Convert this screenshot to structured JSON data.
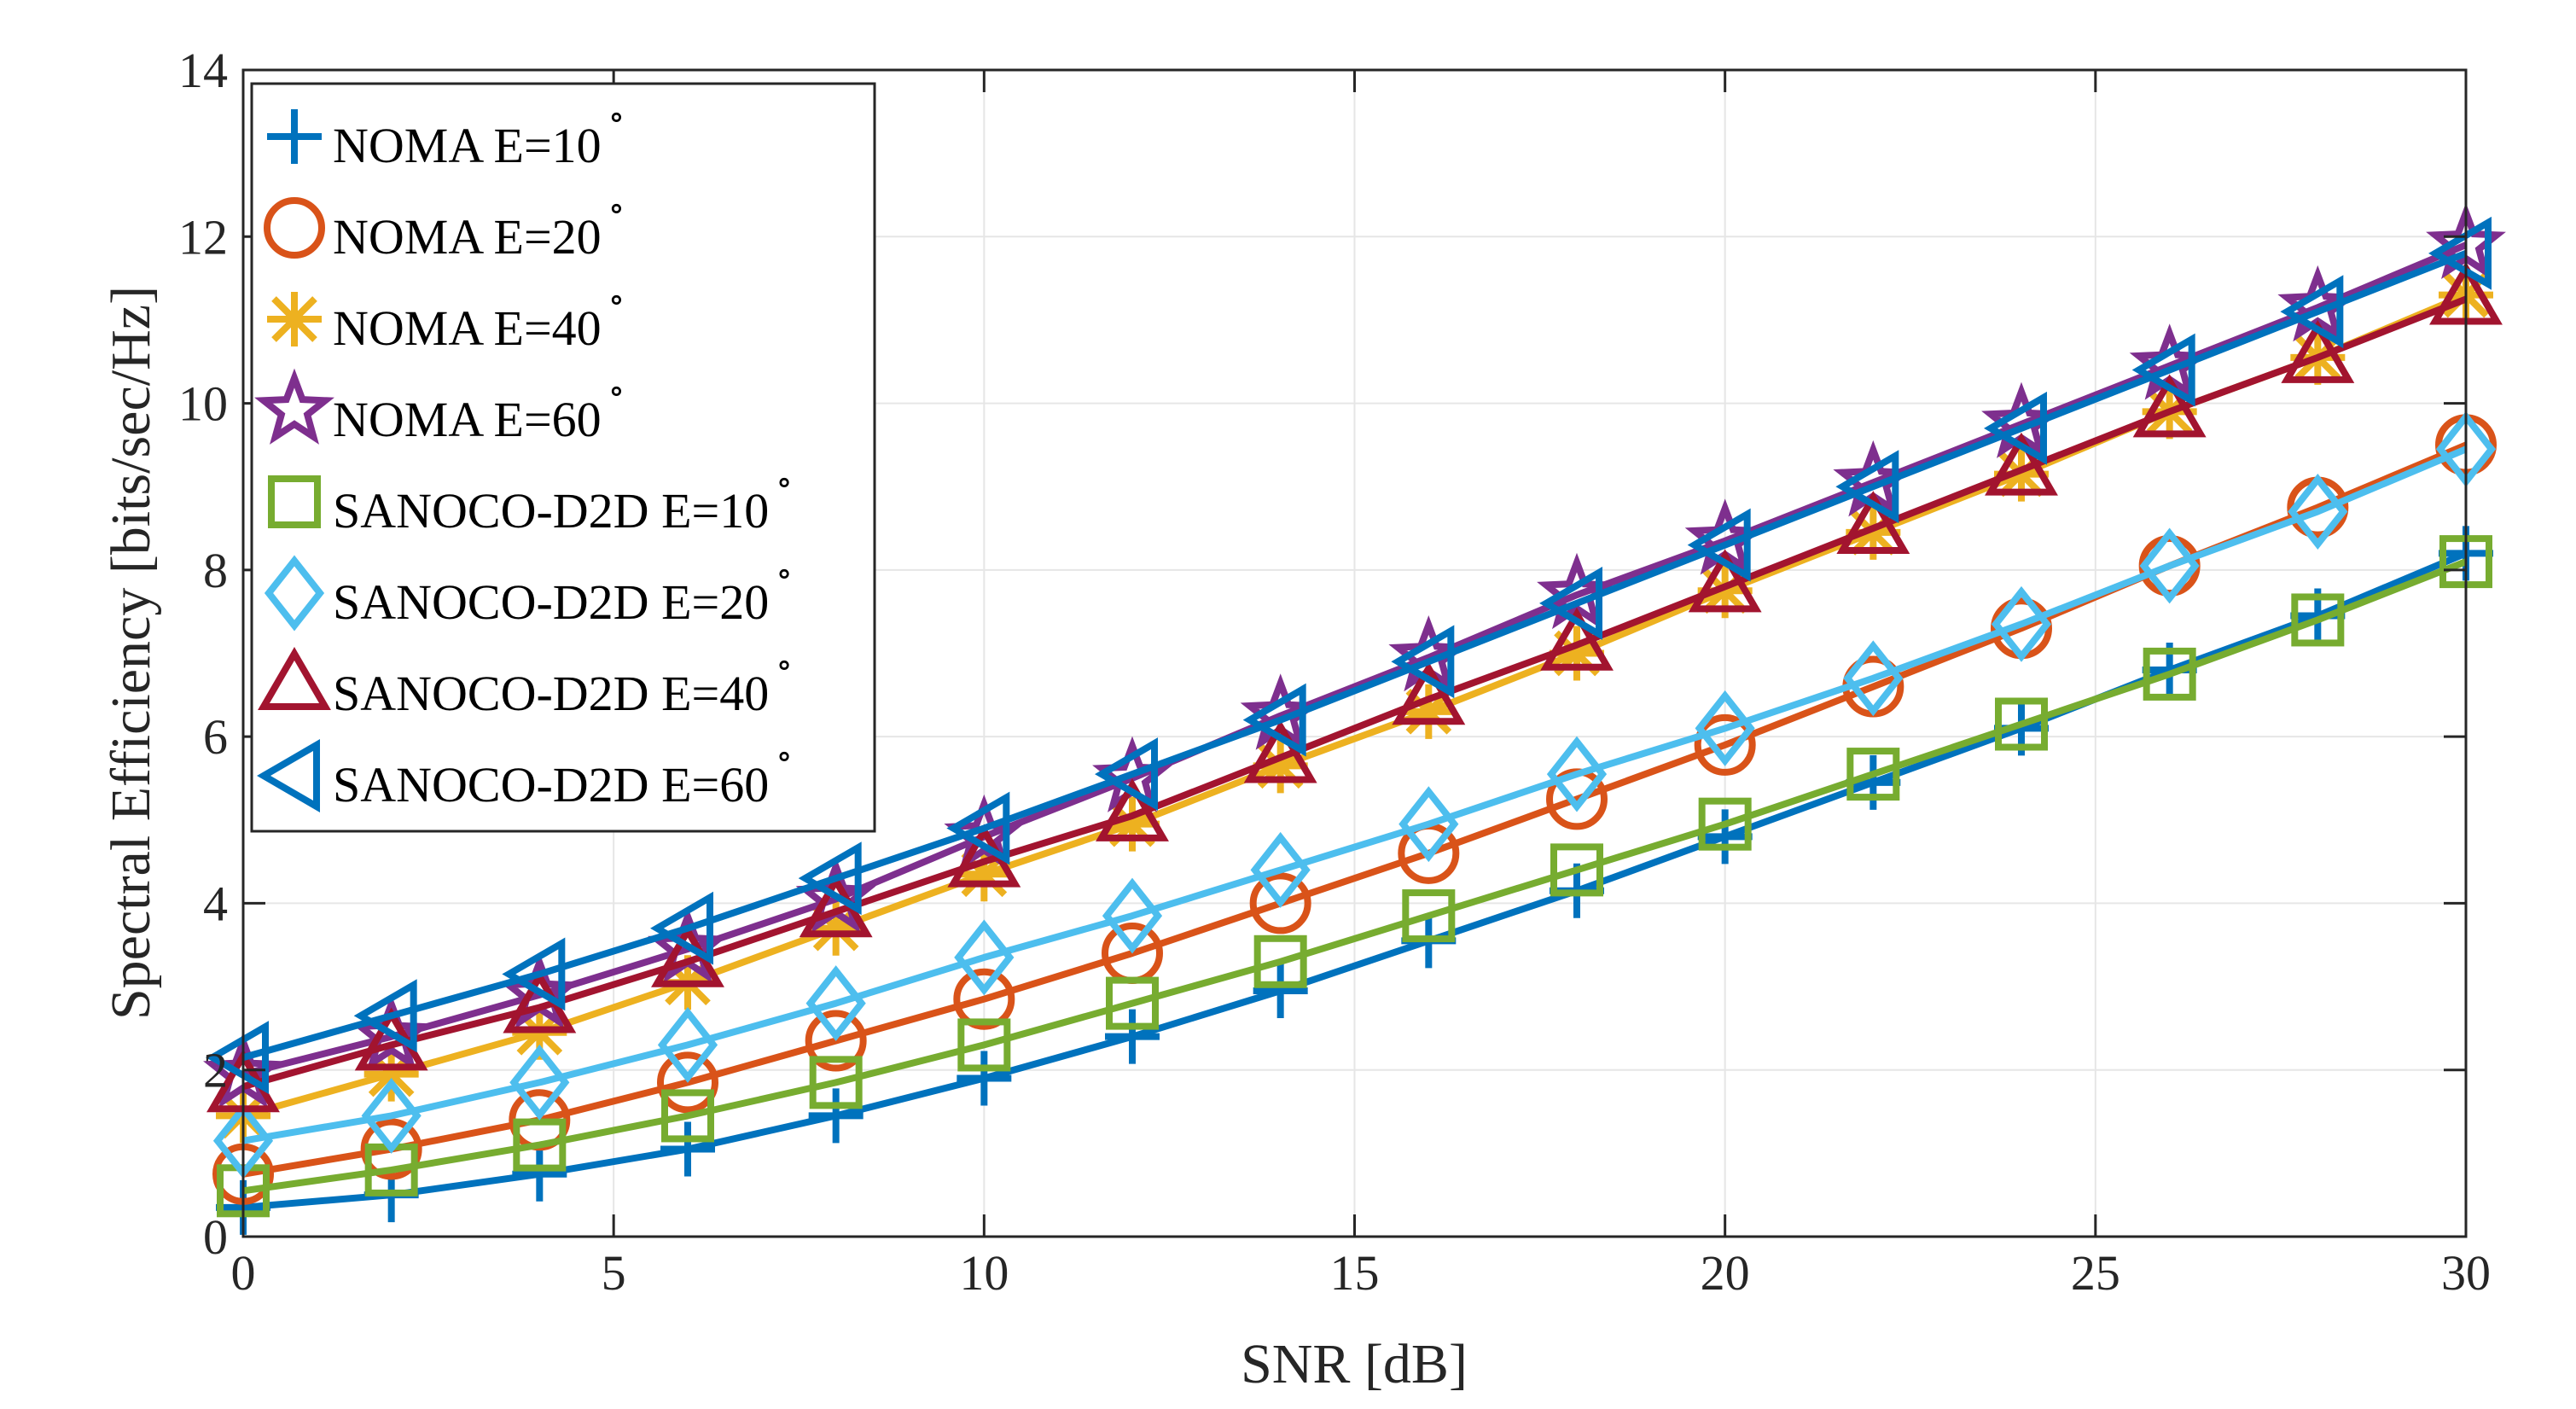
{
  "chart_data": {
    "type": "line",
    "title": "",
    "xlabel": "SNR [dB]",
    "ylabel": "Spectral Efficiency [bits/sec/Hz]",
    "xlim": [
      0,
      30
    ],
    "ylim": [
      0,
      14
    ],
    "xticks": [
      0,
      5,
      10,
      15,
      20,
      25,
      30
    ],
    "yticks": [
      0,
      2,
      4,
      6,
      8,
      10,
      12,
      14
    ],
    "xtick_labels": [
      "0",
      "5",
      "10",
      "15",
      "20",
      "25",
      "30"
    ],
    "ytick_labels": [
      "0",
      "2",
      "4",
      "6",
      "8",
      "10",
      "12",
      "14"
    ],
    "grid": true,
    "legend_position": "top-left",
    "x": [
      0,
      2,
      4,
      6,
      8,
      10,
      12,
      14,
      16,
      18,
      20,
      22,
      24,
      26,
      28,
      30
    ],
    "series": [
      {
        "name": "NOMA E=10",
        "degree": "∘",
        "color": "#0072BD",
        "marker": "plus",
        "values": [
          0.35,
          0.5,
          0.75,
          1.05,
          1.45,
          1.9,
          2.4,
          2.95,
          3.55,
          4.15,
          4.8,
          5.45,
          6.1,
          6.8,
          7.45,
          8.2
        ]
      },
      {
        "name": "NOMA E=20",
        "degree": "∘",
        "color": "#D95319",
        "marker": "circle",
        "values": [
          0.75,
          1.05,
          1.4,
          1.85,
          2.35,
          2.85,
          3.4,
          4.0,
          4.6,
          5.25,
          5.9,
          6.6,
          7.3,
          8.05,
          8.75,
          9.5
        ]
      },
      {
        "name": "NOMA E=40",
        "degree": "∘",
        "color": "#EDB120",
        "marker": "asterisk",
        "values": [
          1.45,
          1.95,
          2.45,
          3.05,
          3.7,
          4.35,
          4.95,
          5.65,
          6.3,
          7.0,
          7.75,
          8.45,
          9.15,
          9.9,
          10.55,
          11.3
        ]
      },
      {
        "name": "NOMA E=60",
        "degree": "∘",
        "color": "#7E2F8E",
        "marker": "star",
        "values": [
          1.95,
          2.4,
          2.9,
          3.45,
          4.05,
          4.8,
          5.5,
          6.25,
          6.95,
          7.7,
          8.35,
          9.05,
          9.75,
          10.45,
          11.15,
          11.9
        ]
      },
      {
        "name": "SANOCO-D2D E=10",
        "degree": "∘",
        "color": "#77AC30",
        "marker": "square",
        "values": [
          0.55,
          0.8,
          1.1,
          1.45,
          1.85,
          2.3,
          2.8,
          3.3,
          3.85,
          4.4,
          4.95,
          5.55,
          6.15,
          6.75,
          7.4,
          8.1
        ]
      },
      {
        "name": "SANOCO-D2D E=20",
        "degree": "∘",
        "color": "#4DBEEE",
        "marker": "diamond",
        "values": [
          1.15,
          1.45,
          1.85,
          2.3,
          2.8,
          3.35,
          3.85,
          4.4,
          4.95,
          5.55,
          6.1,
          6.7,
          7.35,
          8.05,
          8.7,
          9.45
        ]
      },
      {
        "name": "SANOCO-D2D E=40",
        "degree": "∘",
        "color": "#A2142F",
        "marker": "triangle-up",
        "values": [
          1.8,
          2.3,
          2.75,
          3.3,
          3.9,
          4.5,
          5.05,
          5.75,
          6.45,
          7.1,
          7.8,
          8.5,
          9.2,
          9.9,
          10.55,
          11.25
        ]
      },
      {
        "name": "SANOCO-D2D E=60",
        "degree": "∘",
        "color": "#0072BD",
        "marker": "triangle-left",
        "values": [
          2.15,
          2.65,
          3.15,
          3.7,
          4.3,
          4.9,
          5.55,
          6.2,
          6.9,
          7.6,
          8.3,
          9.0,
          9.7,
          10.4,
          11.1,
          11.8
        ]
      }
    ]
  }
}
